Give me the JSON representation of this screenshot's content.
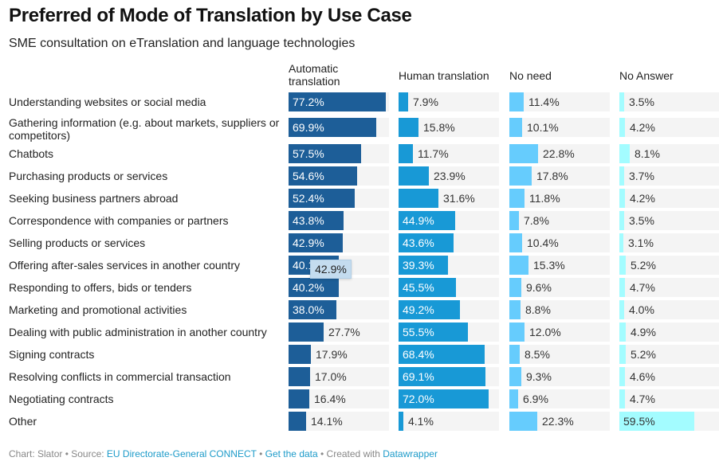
{
  "chart_data": {
    "type": "bar",
    "title": "Preferred of Mode of Translation by Use Case",
    "subtitle": "SME consultation on eTranslation and language technologies",
    "xlabel": "",
    "ylabel": "",
    "value_suffix": "%",
    "xlim": [
      0,
      80
    ],
    "categories": [
      "Understanding websites or social media",
      "Gathering information (e.g. about markets, suppliers or competitors)",
      "Chatbots",
      "Purchasing products or services",
      "Seeking business partners abroad",
      "Correspondence with companies or partners",
      "Selling products or services",
      "Offering after-sales services in another country",
      "Responding to offers, bids or tenders",
      "Marketing and promotional activities",
      "Dealing with public administration in another country",
      "Signing contracts",
      "Resolving conflicts in commercial transaction",
      "Negotiating contracts",
      "Other"
    ],
    "series": [
      {
        "name": "Automatic translation",
        "color": "#1d5e98",
        "values": [
          77.2,
          69.9,
          57.5,
          54.6,
          52.4,
          43.8,
          42.9,
          40.1,
          40.2,
          38.0,
          27.7,
          17.9,
          17.0,
          16.4,
          14.1
        ]
      },
      {
        "name": "Human translation",
        "color": "#1899d6",
        "values": [
          7.9,
          15.8,
          11.7,
          23.9,
          31.6,
          44.9,
          43.6,
          39.3,
          45.5,
          49.2,
          55.5,
          68.4,
          69.1,
          72.0,
          4.1
        ]
      },
      {
        "name": "No need",
        "color": "#66ccfd",
        "values": [
          11.4,
          10.1,
          22.8,
          17.8,
          11.8,
          7.8,
          10.4,
          15.3,
          9.6,
          8.8,
          12.0,
          8.5,
          9.3,
          6.9,
          22.3
        ]
      },
      {
        "name": "No Answer",
        "color": "#a3fcff",
        "values": [
          3.5,
          4.2,
          8.1,
          3.7,
          4.2,
          3.5,
          3.1,
          5.2,
          4.7,
          4.0,
          4.9,
          5.2,
          4.6,
          4.7,
          59.5
        ]
      }
    ],
    "tooltip": "42.9%",
    "grid": false,
    "legend": "column headers"
  },
  "column_headers": [
    "Automatic\ntranslation",
    "Human translation",
    "No need",
    "No Answer"
  ],
  "footer": {
    "prefix": "Chart: Slator • Source: ",
    "source_link": "EU Directorate-General CONNECT",
    "sep1": " • ",
    "data_link": "Get the data",
    "sep2": " • Created with ",
    "tool_link": "Datawrapper"
  }
}
